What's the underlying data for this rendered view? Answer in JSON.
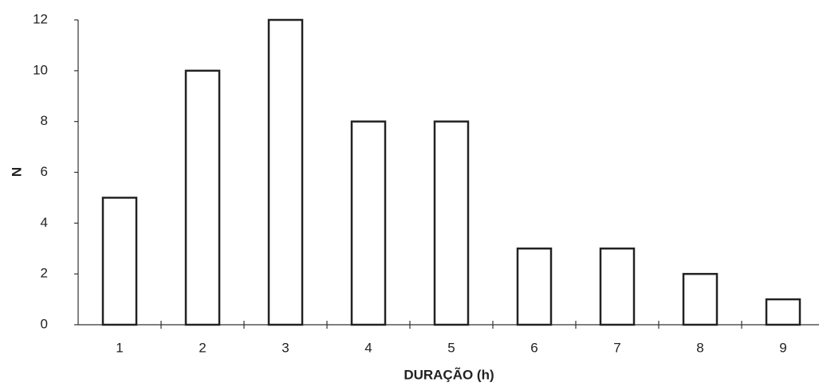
{
  "chart_data": {
    "type": "bar",
    "x_label": "DURAÇÃO (h)",
    "y_label": "N",
    "categories": [
      "1",
      "2",
      "3",
      "4",
      "5",
      "6",
      "7",
      "8",
      "9"
    ],
    "values": [
      5,
      10,
      12,
      8,
      8,
      3,
      3,
      2,
      1
    ],
    "color": "#ffffff",
    "ylim": [
      0,
      12
    ],
    "yticks": [
      0,
      2,
      4,
      6,
      8,
      10,
      12
    ],
    "grid": false
  }
}
